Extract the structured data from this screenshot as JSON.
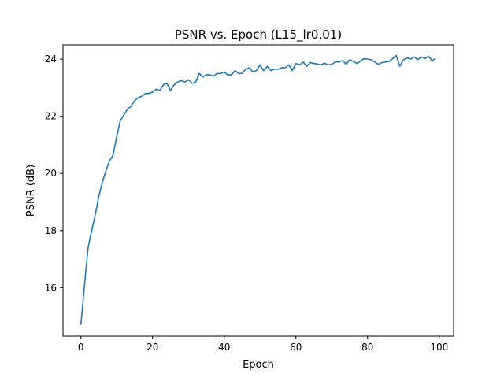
{
  "chart_data": {
    "type": "line",
    "title": "PSNR vs. Epoch (L15_lr0.01)",
    "xlabel": "Epoch",
    "ylabel": "PSNR (dB)",
    "xlim": [
      -5,
      104
    ],
    "ylim": [
      14.3,
      24.5
    ],
    "xticks": [
      0,
      20,
      40,
      60,
      80,
      100
    ],
    "yticks": [
      16,
      18,
      20,
      22,
      24
    ],
    "grid": false,
    "line_color": "#1f77b4",
    "series": [
      {
        "x": [
          0,
          1,
          2,
          3,
          4,
          5,
          6,
          7,
          8,
          9,
          10,
          11,
          12,
          13,
          14,
          15,
          16,
          17,
          18,
          19,
          20,
          21,
          22,
          23,
          24,
          25,
          26,
          27,
          28,
          29,
          30,
          31,
          32,
          33,
          34,
          35,
          36,
          37,
          38,
          39,
          40,
          41,
          42,
          43,
          44,
          45,
          46,
          47,
          48,
          49,
          50,
          51,
          52,
          53,
          54,
          55,
          56,
          57,
          58,
          59,
          60,
          61,
          62,
          63,
          64,
          65,
          66,
          67,
          68,
          69,
          70,
          71,
          72,
          73,
          74,
          75,
          76,
          77,
          78,
          79,
          80,
          81,
          82,
          83,
          84,
          85,
          86,
          87,
          88,
          89,
          90,
          91,
          92,
          93,
          94,
          95,
          96,
          97,
          98,
          99
        ],
        "values": [
          14.7,
          16.1,
          17.4,
          18.0,
          18.55,
          19.2,
          19.7,
          20.1,
          20.45,
          20.65,
          21.3,
          21.85,
          22.05,
          22.25,
          22.35,
          22.55,
          22.65,
          22.7,
          22.8,
          22.8,
          22.85,
          22.95,
          22.9,
          23.1,
          23.15,
          22.9,
          23.1,
          23.2,
          23.25,
          23.2,
          23.28,
          23.15,
          23.2,
          23.5,
          23.38,
          23.45,
          23.45,
          23.4,
          23.5,
          23.5,
          23.55,
          23.45,
          23.45,
          23.6,
          23.5,
          23.5,
          23.65,
          23.7,
          23.55,
          23.6,
          23.8,
          23.6,
          23.75,
          23.6,
          23.65,
          23.65,
          23.7,
          23.7,
          23.8,
          23.6,
          23.85,
          23.8,
          23.9,
          23.75,
          23.88,
          23.85,
          23.83,
          23.8,
          23.86,
          23.8,
          23.82,
          23.9,
          23.9,
          23.95,
          23.82,
          23.98,
          23.92,
          23.85,
          23.93,
          24.02,
          24.0,
          23.98,
          23.9,
          23.82,
          23.88,
          23.9,
          23.92,
          24.02,
          24.13,
          23.75,
          23.98,
          24.05,
          24.0,
          24.08,
          23.98,
          24.08,
          24.02,
          24.1,
          23.95,
          24.03
        ]
      }
    ]
  }
}
